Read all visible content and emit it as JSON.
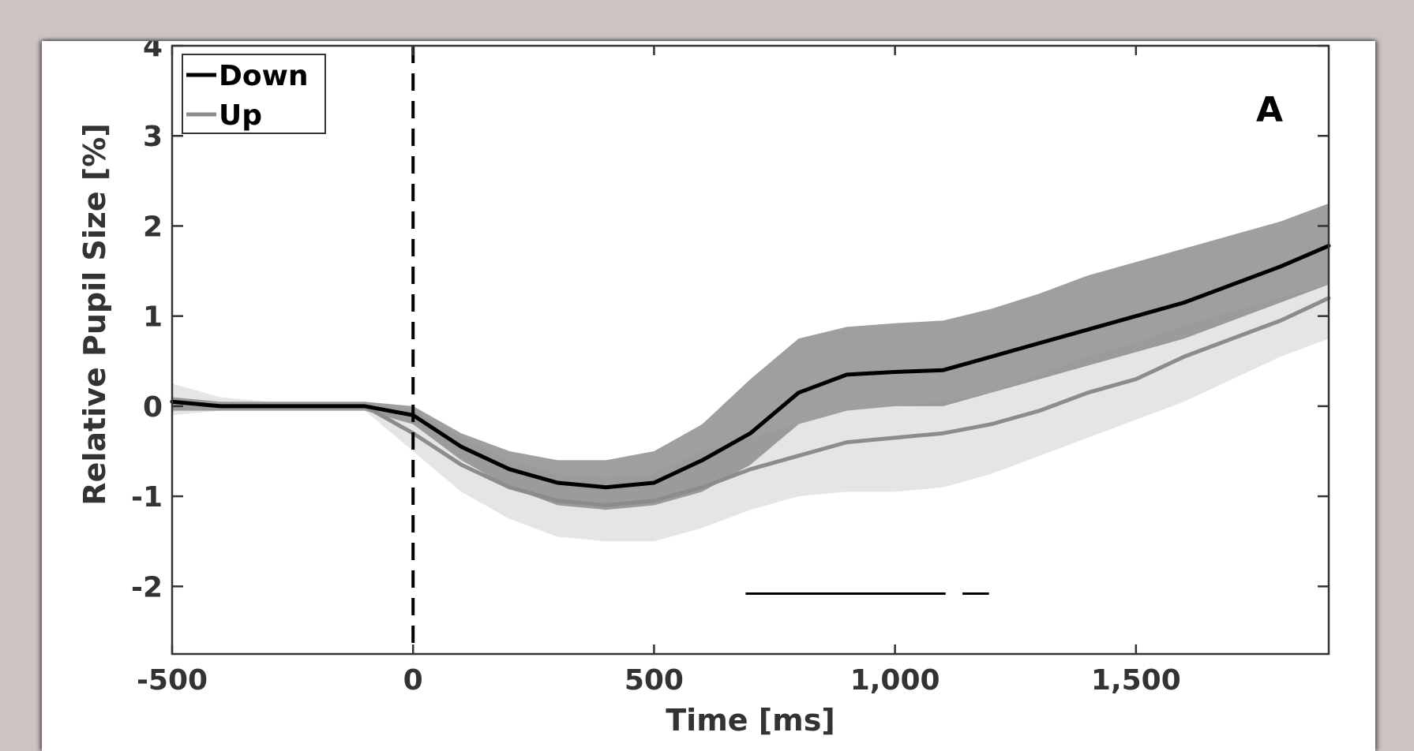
{
  "chart_data": {
    "type": "line",
    "panel_label": "A",
    "xlabel": "Time [ms]",
    "ylabel": "Relative Pupil Size [%]",
    "xlim": [
      -500,
      1900
    ],
    "ylim": [
      -2.75,
      4
    ],
    "x_ticks": [
      -500,
      0,
      500,
      1000,
      1500
    ],
    "x_tick_labels": [
      "-500",
      "0",
      "500",
      "1,000",
      "1,500"
    ],
    "y_ticks": [
      4,
      3,
      2,
      1,
      0,
      -1,
      -2
    ],
    "y_tick_labels": [
      "4",
      "3",
      "2",
      "1",
      "0",
      "-1",
      "-2"
    ],
    "grid": false,
    "legend_position": "top-left",
    "event_line_x": 0,
    "x": [
      -500,
      -400,
      -300,
      -200,
      -100,
      0,
      100,
      200,
      300,
      400,
      500,
      600,
      700,
      800,
      900,
      1000,
      1100,
      1200,
      1300,
      1400,
      1500,
      1600,
      1700,
      1800,
      1900
    ],
    "series": [
      {
        "name": "Down",
        "color": "#000000",
        "band_color": "#8a8a8a",
        "values": [
          0.05,
          0.0,
          0.0,
          0.0,
          0.0,
          -0.1,
          -0.45,
          -0.7,
          -0.85,
          -0.9,
          -0.85,
          -0.6,
          -0.3,
          0.15,
          0.35,
          0.38,
          0.4,
          0.55,
          0.7,
          0.85,
          1.0,
          1.15,
          1.35,
          1.55,
          1.78
        ],
        "band_upper": [
          0.1,
          0.05,
          0.05,
          0.05,
          0.05,
          0.0,
          -0.3,
          -0.5,
          -0.6,
          -0.6,
          -0.5,
          -0.2,
          0.3,
          0.75,
          0.88,
          0.92,
          0.95,
          1.08,
          1.25,
          1.45,
          1.6,
          1.75,
          1.9,
          2.05,
          2.25
        ],
        "band_lower": [
          -0.05,
          -0.05,
          -0.05,
          -0.05,
          -0.05,
          -0.2,
          -0.6,
          -0.9,
          -1.1,
          -1.15,
          -1.1,
          -0.95,
          -0.65,
          -0.2,
          -0.05,
          0.0,
          0.0,
          0.15,
          0.3,
          0.45,
          0.6,
          0.75,
          0.95,
          1.15,
          1.35
        ]
      },
      {
        "name": "Up",
        "color": "#8c8c8c",
        "band_color": "#e5e5e5",
        "values": [
          0.05,
          0.0,
          0.0,
          0.0,
          0.0,
          -0.3,
          -0.65,
          -0.9,
          -1.05,
          -1.1,
          -1.05,
          -0.9,
          -0.7,
          -0.55,
          -0.4,
          -0.35,
          -0.3,
          -0.2,
          -0.05,
          0.15,
          0.3,
          0.55,
          0.75,
          0.95,
          1.2
        ],
        "band_upper": [
          0.25,
          0.1,
          0.05,
          0.05,
          0.05,
          -0.05,
          -0.35,
          -0.6,
          -0.75,
          -0.8,
          -0.75,
          -0.5,
          -0.35,
          -0.2,
          -0.05,
          0.0,
          0.05,
          0.15,
          0.35,
          0.55,
          0.7,
          0.9,
          1.05,
          1.2,
          1.35
        ],
        "band_lower": [
          -0.1,
          -0.05,
          -0.05,
          -0.05,
          -0.05,
          -0.5,
          -0.95,
          -1.25,
          -1.45,
          -1.5,
          -1.5,
          -1.35,
          -1.15,
          -1.0,
          -0.95,
          -0.95,
          -0.9,
          -0.75,
          -0.55,
          -0.35,
          -0.15,
          0.05,
          0.3,
          0.55,
          0.75
        ]
      }
    ],
    "significance_segments": [
      {
        "x_start": 690,
        "x_end": 1105,
        "y": -2.08
      },
      {
        "x_start": 1140,
        "x_end": 1195,
        "y": -2.08
      }
    ]
  }
}
